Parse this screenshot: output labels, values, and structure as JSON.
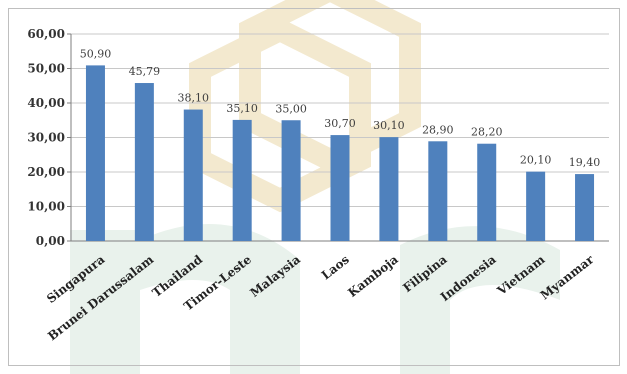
{
  "chart_data": {
    "type": "bar",
    "title": "",
    "xlabel": "",
    "ylabel": "",
    "ylim": [
      0,
      60
    ],
    "yticks": [
      "0,00",
      "10,00",
      "20,00",
      "30,00",
      "40,00",
      "50,00",
      "60,00"
    ],
    "grid": "horizontal",
    "bar_color": "#4f81bd",
    "categories": [
      "Singapura",
      "Brunei Darussalam",
      "Thailand",
      "Timor-Leste",
      "Malaysia",
      "Laos",
      "Kamboja",
      "Filipina",
      "Indonesia",
      "Vietnam",
      "Myanmar"
    ],
    "values": [
      50.9,
      45.79,
      38.1,
      35.1,
      35.0,
      30.7,
      30.1,
      28.9,
      28.2,
      20.1,
      19.4
    ],
    "value_labels": [
      "50,90",
      "45,79",
      "38,10",
      "35,10",
      "35,00",
      "30,70",
      "30,10",
      "28,90",
      "28,20",
      "20,10",
      "19,40"
    ]
  },
  "watermark": {
    "color_gold": "#f3e9cf",
    "color_green": "#e6f0e9"
  }
}
